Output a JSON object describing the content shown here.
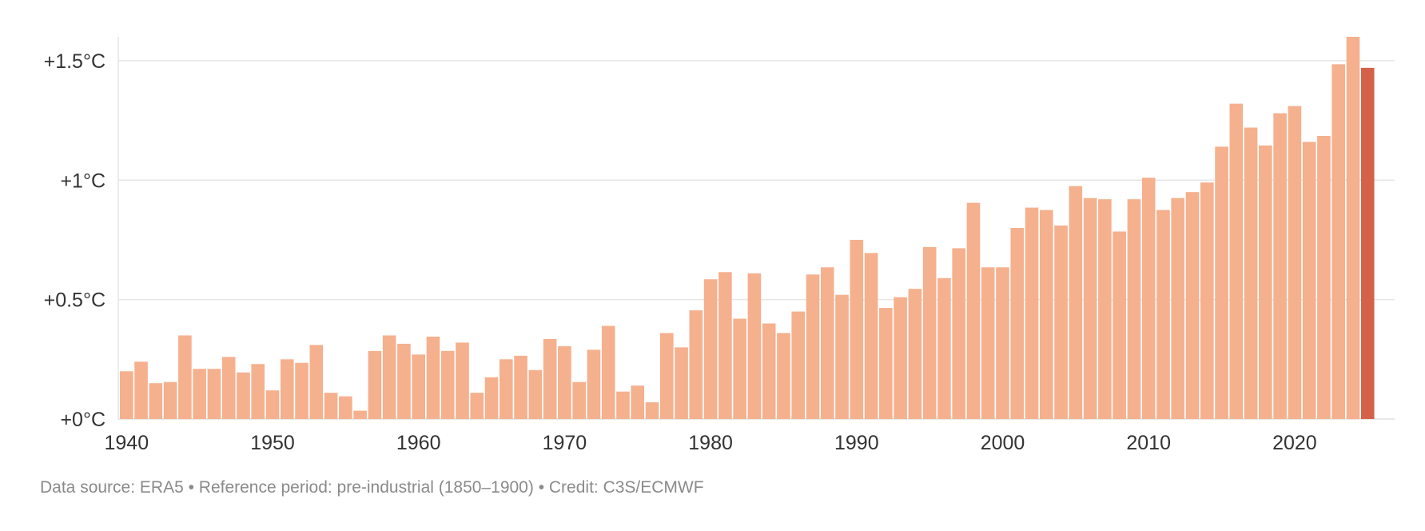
{
  "chart_data": {
    "type": "bar",
    "title": "",
    "xlabel": "",
    "ylabel": "",
    "ylim": [
      0,
      1.6
    ],
    "grid": true,
    "y_ticks": [
      {
        "value": 0,
        "label": "+0°C"
      },
      {
        "value": 0.5,
        "label": "+0.5°C"
      },
      {
        "value": 1.0,
        "label": "+1°C"
      },
      {
        "value": 1.5,
        "label": "+1.5°C"
      }
    ],
    "x_ticks": [
      {
        "year": 1940,
        "label": "1940"
      },
      {
        "year": 1950,
        "label": "1950"
      },
      {
        "year": 1960,
        "label": "1960"
      },
      {
        "year": 1970,
        "label": "1970"
      },
      {
        "year": 1980,
        "label": "1980"
      },
      {
        "year": 1990,
        "label": "1990"
      },
      {
        "year": 2000,
        "label": "2000"
      },
      {
        "year": 2010,
        "label": "2010"
      },
      {
        "year": 2020,
        "label": "2020"
      }
    ],
    "colors": {
      "default": "#f5b08e",
      "highlight": "#d4614a"
    },
    "highlight_year": 2025,
    "x": [
      1940,
      1941,
      1942,
      1943,
      1944,
      1945,
      1946,
      1947,
      1948,
      1949,
      1950,
      1951,
      1952,
      1953,
      1954,
      1955,
      1956,
      1957,
      1958,
      1959,
      1960,
      1961,
      1962,
      1963,
      1964,
      1965,
      1966,
      1967,
      1968,
      1969,
      1970,
      1971,
      1972,
      1973,
      1974,
      1975,
      1976,
      1977,
      1978,
      1979,
      1980,
      1981,
      1982,
      1983,
      1984,
      1985,
      1986,
      1987,
      1988,
      1989,
      1990,
      1991,
      1992,
      1993,
      1994,
      1995,
      1996,
      1997,
      1998,
      1999,
      2000,
      2001,
      2002,
      2003,
      2004,
      2005,
      2006,
      2007,
      2008,
      2009,
      2010,
      2011,
      2012,
      2013,
      2014,
      2015,
      2016,
      2017,
      2018,
      2019,
      2020,
      2021,
      2022,
      2023,
      2024,
      2025
    ],
    "values": [
      0.2,
      0.24,
      0.15,
      0.155,
      0.35,
      0.21,
      0.21,
      0.26,
      0.195,
      0.23,
      0.12,
      0.25,
      0.235,
      0.31,
      0.11,
      0.095,
      0.035,
      0.285,
      0.35,
      0.315,
      0.27,
      0.345,
      0.285,
      0.32,
      0.11,
      0.175,
      0.25,
      0.265,
      0.205,
      0.335,
      0.305,
      0.155,
      0.29,
      0.39,
      0.115,
      0.14,
      0.07,
      0.36,
      0.3,
      0.455,
      0.585,
      0.615,
      0.42,
      0.61,
      0.4,
      0.36,
      0.45,
      0.605,
      0.635,
      0.52,
      0.75,
      0.695,
      0.465,
      0.51,
      0.545,
      0.72,
      0.59,
      0.715,
      0.905,
      0.635,
      0.635,
      0.8,
      0.885,
      0.875,
      0.81,
      0.975,
      0.925,
      0.92,
      0.785,
      0.92,
      1.01,
      0.875,
      0.925,
      0.95,
      0.99,
      1.14,
      1.32,
      1.22,
      1.145,
      1.28,
      1.31,
      1.16,
      1.185,
      1.485,
      1.6,
      1.47
    ]
  },
  "footer": {
    "source_note": "Data source: ERA5 • Reference period: pre-industrial (1850–1900) • Credit: C3S/ECMWF"
  }
}
